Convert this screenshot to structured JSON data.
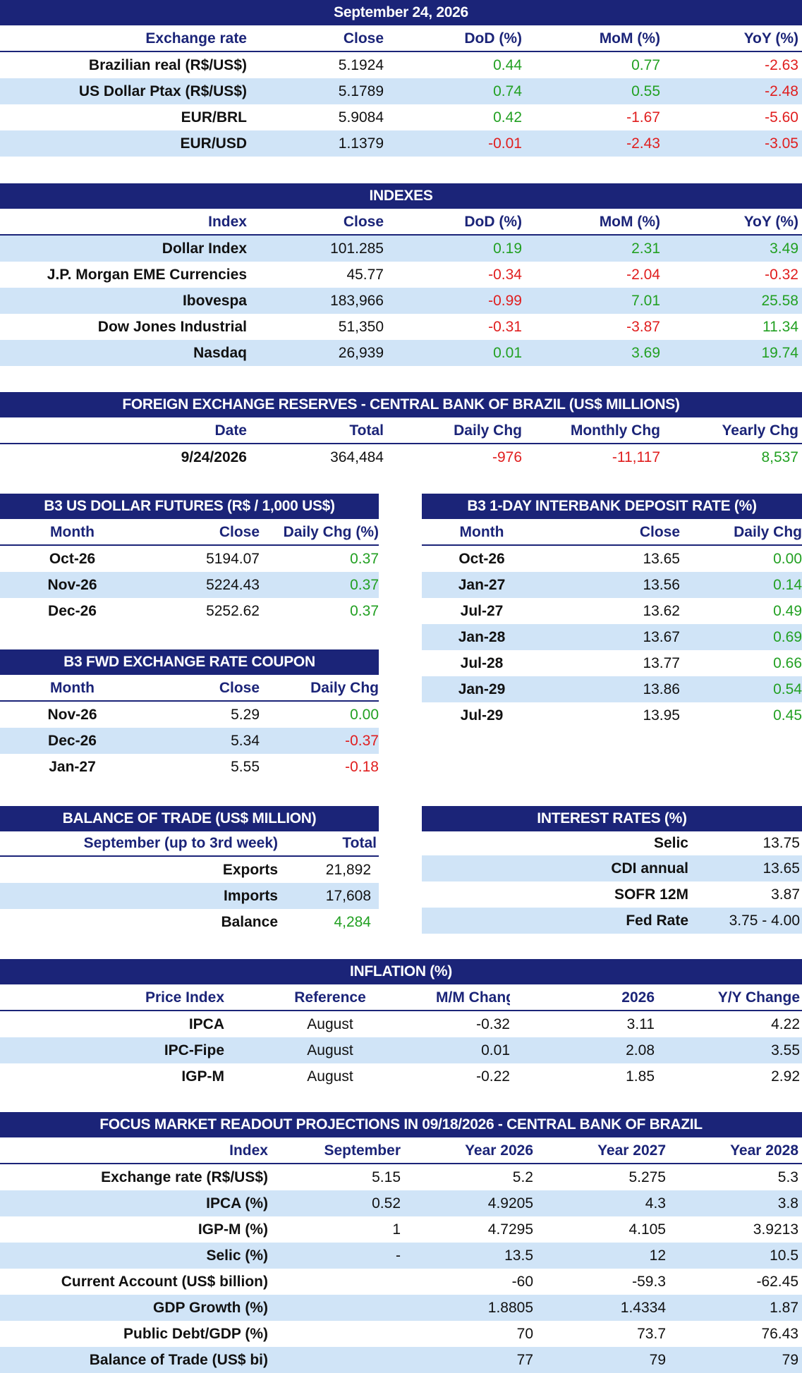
{
  "exchange": {
    "date": "September 24, 2026",
    "headers": [
      "Exchange rate",
      "Close",
      "DoD (%)",
      "MoM (%)",
      "YoY (%)"
    ],
    "rows": [
      {
        "name": "Brazilian real (R$/US$)",
        "close": "5.1924",
        "dod": "0.44",
        "mom": "0.77",
        "yoy": "-2.63"
      },
      {
        "name": "US Dollar Ptax (R$/US$)",
        "close": "5.1789",
        "dod": "0.74",
        "mom": "0.55",
        "yoy": "-2.48"
      },
      {
        "name": "EUR/BRL",
        "close": "5.9084",
        "dod": "0.42",
        "mom": "-1.67",
        "yoy": "-5.60"
      },
      {
        "name": "EUR/USD",
        "close": "1.1379",
        "dod": "-0.01",
        "mom": "-2.43",
        "yoy": "-3.05"
      }
    ]
  },
  "indexes": {
    "title": "INDEXES",
    "headers": [
      "Index",
      "Close",
      "DoD (%)",
      "MoM (%)",
      "YoY (%)"
    ],
    "rows": [
      {
        "name": "Dollar Index",
        "close": "101.285",
        "dod": "0.19",
        "mom": "2.31",
        "yoy": "3.49"
      },
      {
        "name": "J.P. Morgan EME Currencies",
        "close": "45.77",
        "dod": "-0.34",
        "mom": "-2.04",
        "yoy": "-0.32"
      },
      {
        "name": "Ibovespa",
        "close": "183,966",
        "dod": "-0.99",
        "mom": "7.01",
        "yoy": "25.58"
      },
      {
        "name": "Dow Jones Industrial",
        "close": "51,350",
        "dod": "-0.31",
        "mom": "-3.87",
        "yoy": "11.34"
      },
      {
        "name": "Nasdaq",
        "close": "26,939",
        "dod": "0.01",
        "mom": "3.69",
        "yoy": "19.74"
      }
    ]
  },
  "reserves": {
    "title": "FOREIGN EXCHANGE RESERVES - CENTRAL BANK OF BRAZIL (US$ MILLIONS)",
    "headers": [
      "Date",
      "Total",
      "Daily Chg",
      "Monthly Chg",
      "Yearly Chg"
    ],
    "row": {
      "date": "9/24/2026",
      "total": "364,484",
      "daily": "-976",
      "monthly": "-11,117",
      "yearly": "8,537"
    }
  },
  "usd_futures": {
    "title": "B3 US DOLLAR FUTURES (R$ / 1,000 US$)",
    "headers": [
      "Month",
      "Close",
      "Daily Chg (%)"
    ],
    "rows": [
      {
        "month": "Oct-26",
        "close": "5194.07",
        "chg": "0.37"
      },
      {
        "month": "Nov-26",
        "close": "5224.43",
        "chg": "0.37"
      },
      {
        "month": "Dec-26",
        "close": "5252.62",
        "chg": "0.37"
      }
    ]
  },
  "di_rate": {
    "title": "B3 1-DAY INTERBANK DEPOSIT RATE (%)",
    "headers": [
      "Month",
      "Close",
      "Daily Chg"
    ],
    "rows": [
      {
        "month": "Oct-26",
        "close": "13.65",
        "chg": "0.00"
      },
      {
        "month": "Jan-27",
        "close": "13.56",
        "chg": "0.14"
      },
      {
        "month": "Jul-27",
        "close": "13.62",
        "chg": "0.49"
      },
      {
        "month": "Jan-28",
        "close": "13.67",
        "chg": "0.69"
      },
      {
        "month": "Jul-28",
        "close": "13.77",
        "chg": "0.66"
      },
      {
        "month": "Jan-29",
        "close": "13.86",
        "chg": "0.54"
      },
      {
        "month": "Jul-29",
        "close": "13.95",
        "chg": "0.45"
      }
    ]
  },
  "coupon": {
    "title": "B3 FWD EXCHANGE RATE COUPON",
    "headers": [
      "Month",
      "Close",
      "Daily Chg"
    ],
    "rows": [
      {
        "month": "Nov-26",
        "close": "5.29",
        "chg": "0.00"
      },
      {
        "month": "Dec-26",
        "close": "5.34",
        "chg": "-0.37"
      },
      {
        "month": "Jan-27",
        "close": "5.55",
        "chg": "-0.18"
      }
    ]
  },
  "trade": {
    "title": "BALANCE OF TRADE (US$ MILLION)",
    "headers": [
      "September (up to 3rd week)",
      "Total"
    ],
    "rows": [
      {
        "label": "Exports",
        "value": "21,892"
      },
      {
        "label": "Imports",
        "value": "17,608"
      },
      {
        "label": "Balance",
        "value": "4,284"
      }
    ]
  },
  "rates": {
    "title": "INTEREST RATES (%)",
    "rows": [
      {
        "label": "Selic",
        "value": "13.75"
      },
      {
        "label": "CDI annual",
        "value": "13.65"
      },
      {
        "label": "SOFR 12M",
        "value": "3.87"
      },
      {
        "label": "Fed Rate",
        "value": "3.75 - 4.00"
      }
    ]
  },
  "inflation": {
    "title": "INFLATION (%)",
    "headers": [
      "Price Index",
      "Reference",
      "M/M Change",
      "2026",
      "Y/Y Change"
    ],
    "rows": [
      {
        "name": "IPCA",
        "ref": "August",
        "mm": "-0.32",
        "year": "3.11",
        "yy": "4.22"
      },
      {
        "name": "IPC-Fipe",
        "ref": "August",
        "mm": "0.01",
        "year": "2.08",
        "yy": "3.55"
      },
      {
        "name": "IGP-M",
        "ref": "August",
        "mm": "-0.22",
        "year": "1.85",
        "yy": "2.92"
      }
    ]
  },
  "focus": {
    "title": "FOCUS MARKET READOUT PROJECTIONS IN 09/18/2026 - CENTRAL BANK OF BRAZIL",
    "headers": [
      "Index",
      "September",
      "Year 2026",
      "Year 2027",
      "Year 2028"
    ],
    "rows": [
      {
        "name": "Exchange rate (R$/US$)",
        "sep": "5.15",
        "y26": "5.2",
        "y27": "5.275",
        "y28": "5.3"
      },
      {
        "name": "IPCA (%)",
        "sep": "0.52",
        "y26": "4.9205",
        "y27": "4.3",
        "y28": "3.8"
      },
      {
        "name": "IGP-M (%)",
        "sep": "1",
        "y26": "4.7295",
        "y27": "4.105",
        "y28": "3.9213"
      },
      {
        "name": "Selic (%)",
        "sep": "-",
        "y26": "13.5",
        "y27": "12",
        "y28": "10.5"
      },
      {
        "name": "Current Account (US$ billion)",
        "sep": "",
        "y26": "-60",
        "y27": "-59.3",
        "y28": "-62.45"
      },
      {
        "name": "GDP Growth (%)",
        "sep": "",
        "y26": "1.8805",
        "y27": "1.4334",
        "y28": "1.87"
      },
      {
        "name": "Public Debt/GDP (%)",
        "sep": "",
        "y26": "70",
        "y27": "73.7",
        "y28": "76.43"
      },
      {
        "name": "Balance of Trade (US$ bi)",
        "sep": "",
        "y26": "77",
        "y27": "79",
        "y28": "79"
      }
    ]
  },
  "colors": {
    "header_bg": "#1b2478",
    "row_shade": "#d0e4f7",
    "positive": "#22a022",
    "negative": "#e01e1e"
  }
}
